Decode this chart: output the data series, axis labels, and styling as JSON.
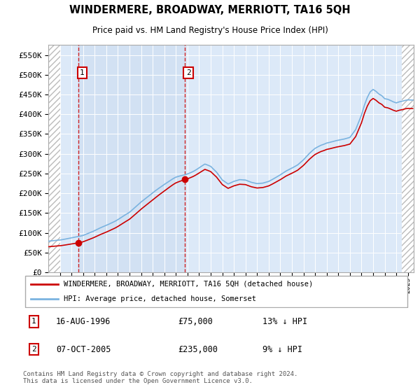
{
  "title": "WINDERMERE, BROADWAY, MERRIOTT, TA16 5QH",
  "subtitle": "Price paid vs. HM Land Registry's House Price Index (HPI)",
  "legend_line1": "WINDERMERE, BROADWAY, MERRIOTT, TA16 5QH (detached house)",
  "legend_line2": "HPI: Average price, detached house, Somerset",
  "annotation1_label": "1",
  "annotation1_date": "16-AUG-1996",
  "annotation1_price": "£75,000",
  "annotation1_hpi": "13% ↓ HPI",
  "annotation2_label": "2",
  "annotation2_date": "07-OCT-2005",
  "annotation2_price": "£235,000",
  "annotation2_hpi": "9% ↓ HPI",
  "copyright": "Contains HM Land Registry data © Crown copyright and database right 2024.\nThis data is licensed under the Open Government Licence v3.0.",
  "ylim": [
    0,
    575000
  ],
  "yticks": [
    0,
    50000,
    100000,
    150000,
    200000,
    250000,
    300000,
    350000,
    400000,
    450000,
    500000,
    550000
  ],
  "hpi_color": "#7ab3e0",
  "price_color": "#cc0000",
  "plot_bg_color": "#dce9f8",
  "shaded_bg_color": "#ccdcf0",
  "sale1_x": 1996.62,
  "sale1_y": 75000,
  "sale2_x": 2005.77,
  "sale2_y": 235000,
  "xmin": 1994.0,
  "xmax": 2025.5
}
